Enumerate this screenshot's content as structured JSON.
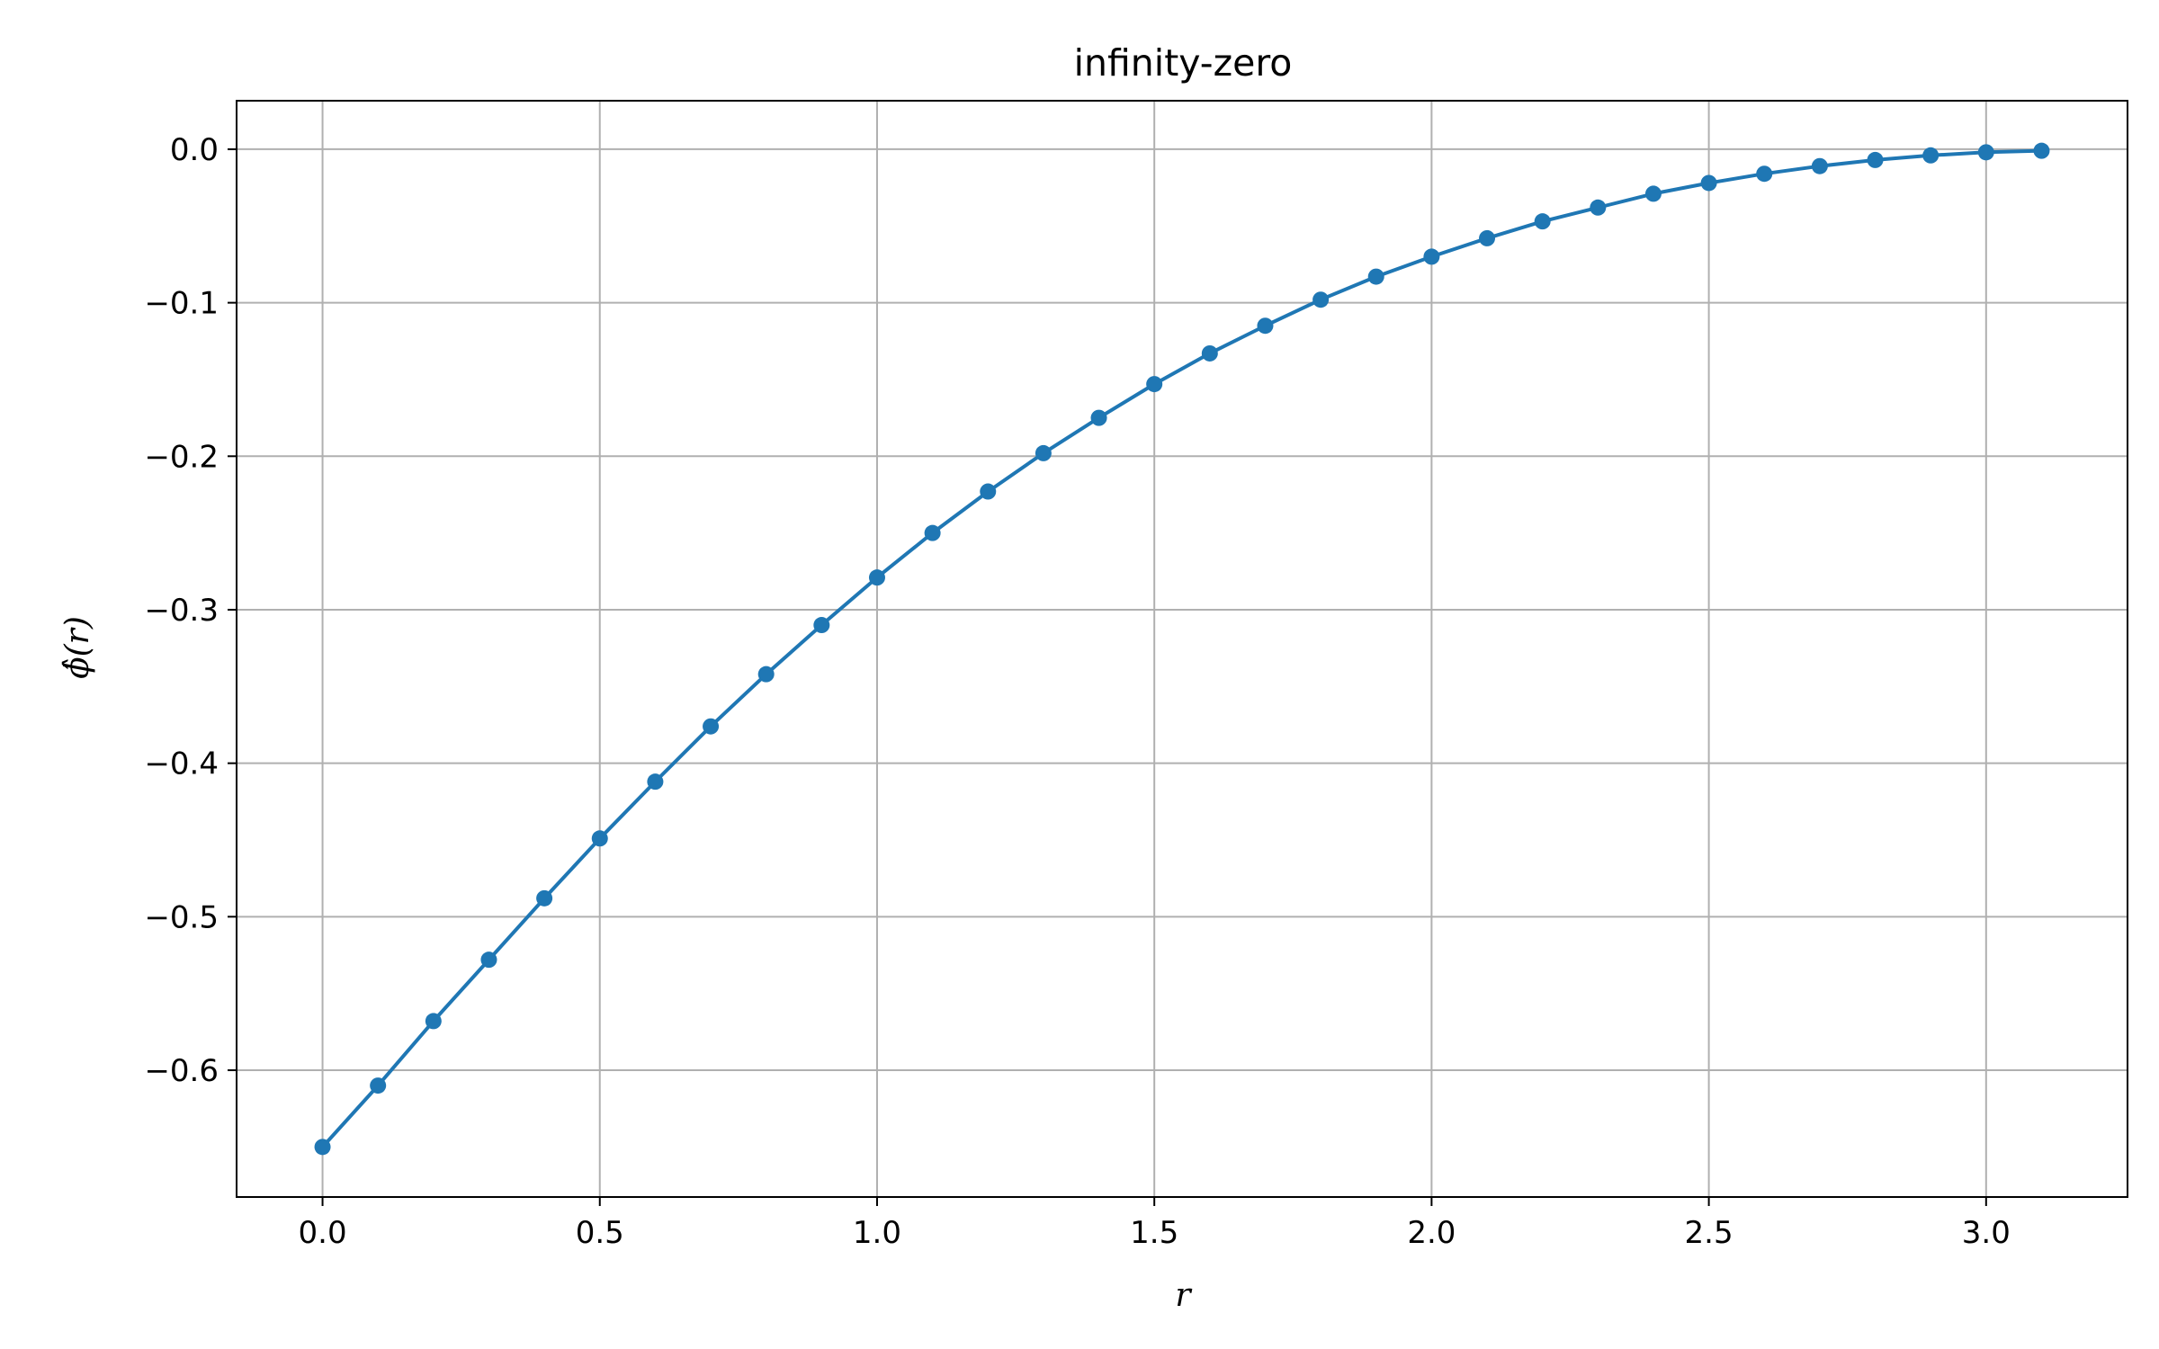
{
  "chart_data": {
    "type": "line",
    "title": "infinity-zero",
    "xlabel": "r",
    "ylabel": "ϕ̂(r)",
    "xlim": [
      -0.155,
      3.255
    ],
    "ylim": [
      -0.6826,
      0.0316
    ],
    "xticks": [
      0.0,
      0.5,
      1.0,
      1.5,
      2.0,
      2.5,
      3.0
    ],
    "xtick_labels": [
      "0.0",
      "0.5",
      "1.0",
      "1.5",
      "2.0",
      "2.5",
      "3.0"
    ],
    "yticks": [
      0.0,
      -0.1,
      -0.2,
      -0.3,
      -0.4,
      -0.5,
      -0.6
    ],
    "ytick_labels": [
      "0.0",
      "−0.1",
      "−0.2",
      "−0.3",
      "−0.4",
      "−0.5",
      "−0.6"
    ],
    "grid": true,
    "marker": "circle",
    "color": "#1f77b4",
    "grid_color": "#b0b0b0",
    "series": [
      {
        "x": [
          0.0,
          0.1,
          0.2,
          0.3,
          0.4,
          0.5,
          0.6,
          0.7,
          0.8,
          0.9,
          1.0,
          1.1,
          1.2,
          1.3,
          1.4,
          1.5,
          1.6,
          1.7,
          1.8,
          1.9,
          2.0,
          2.1,
          2.2,
          2.3,
          2.4,
          2.5,
          2.6,
          2.7,
          2.8,
          2.9,
          3.0,
          3.1
        ],
        "y": [
          -0.65,
          -0.61,
          -0.568,
          -0.528,
          -0.488,
          -0.449,
          -0.412,
          -0.376,
          -0.342,
          -0.31,
          -0.279,
          -0.25,
          -0.223,
          -0.198,
          -0.175,
          -0.153,
          -0.133,
          -0.115,
          -0.098,
          -0.083,
          -0.07,
          -0.058,
          -0.047,
          -0.038,
          -0.029,
          -0.022,
          -0.016,
          -0.011,
          -0.007,
          -0.004,
          -0.002,
          -0.001
        ]
      }
    ]
  }
}
